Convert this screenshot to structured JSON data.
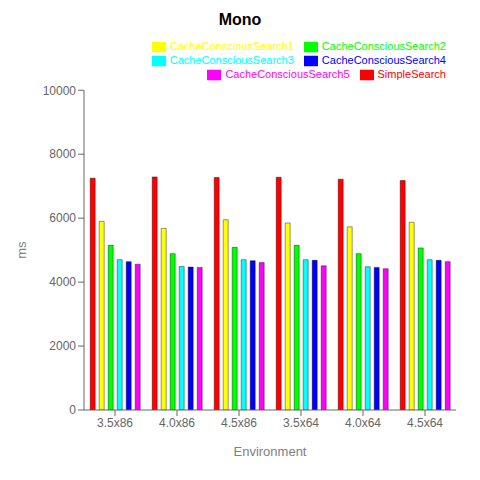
{
  "chart_data": {
    "type": "bar",
    "title": "Mono",
    "xlabel": "Environment",
    "ylabel": "ms",
    "categories": [
      "3.5x86",
      "4.0x86",
      "4.5x86",
      "3.5x64",
      "4.0x64",
      "4.5x64"
    ],
    "series": [
      {
        "name": "SimpleSearch",
        "color": "#FF0000",
        "values": [
          7250,
          7290,
          7270,
          7280,
          7220,
          7180
        ]
      },
      {
        "name": "CacheConsciousSearch1",
        "color": "#FFFF00",
        "values": [
          5900,
          5680,
          5950,
          5850,
          5730,
          5870
        ]
      },
      {
        "name": "CacheConsciousSearch2",
        "color": "#00FF00",
        "values": [
          5150,
          4890,
          5090,
          5150,
          4890,
          5070
        ]
      },
      {
        "name": "CacheConsciousSearch3",
        "color": "#00FFFF",
        "values": [
          4700,
          4490,
          4700,
          4700,
          4480,
          4700
        ]
      },
      {
        "name": "CacheConsciousSearch4",
        "color": "#0000FF",
        "values": [
          4640,
          4470,
          4670,
          4680,
          4460,
          4680
        ]
      },
      {
        "name": "CacheConsciousSearch5",
        "color": "#FF00FF",
        "values": [
          4560,
          4460,
          4610,
          4510,
          4420,
          4640
        ]
      }
    ],
    "ylim": [
      0,
      10000
    ],
    "yticks": [
      0,
      2000,
      4000,
      6000,
      8000,
      10000
    ],
    "grid": false,
    "legend": "upper right"
  }
}
